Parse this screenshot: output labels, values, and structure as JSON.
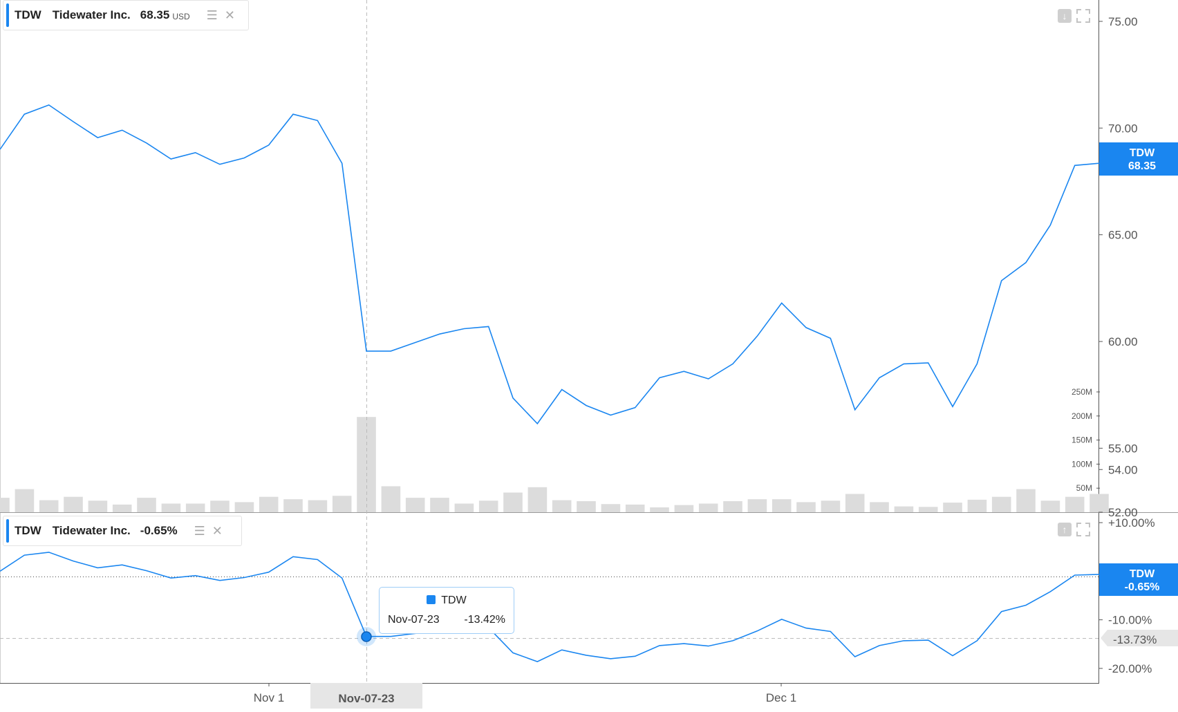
{
  "legend_top": {
    "symbol": "TDW",
    "name": "Tidewater Inc.",
    "price": "68.35",
    "currency": "USD"
  },
  "legend_bottom": {
    "symbol": "TDW",
    "name": "Tidewater Inc.",
    "change": "-0.65%"
  },
  "price_badge": {
    "symbol": "TDW",
    "value": "68.35"
  },
  "pct_badge": {
    "symbol": "TDW",
    "value": "-0.65%"
  },
  "crosshair_badge": "-13.73%",
  "tooltip": {
    "symbol": "TDW",
    "date": "Nov-07-23",
    "value": "-13.42%"
  },
  "crosshair_x_label": "Nov-07-23",
  "x_axis_labels": [
    "Nov 1",
    "Dec 1"
  ],
  "price_axis_labels": [
    "75.00",
    "70.00",
    "65.00",
    "60.00",
    "55.00",
    "54.00",
    "52.00"
  ],
  "volume_axis_labels": [
    "250M",
    "200M",
    "150M",
    "100M",
    "50M"
  ],
  "pct_axis_labels": [
    "+10.00%",
    "-10.00%",
    "-20.00%"
  ],
  "colors": {
    "line": "#1a86f0",
    "volume": "#dcdcdc",
    "badge": "#1a86f0"
  },
  "chart_data": [
    {
      "type": "line",
      "title": "",
      "series": [
        {
          "name": "TDW",
          "values": [
            69.0,
            70.65,
            71.08,
            70.3,
            69.55,
            69.9,
            69.3,
            68.55,
            68.85,
            68.3,
            68.6,
            69.2,
            70.65,
            70.35,
            68.35,
            59.55,
            59.55,
            59.95,
            60.35,
            60.6,
            60.7,
            57.35,
            56.15,
            57.75,
            57.0,
            56.55,
            56.9,
            58.3,
            58.6,
            58.25,
            58.95,
            60.25,
            61.8,
            60.65,
            60.15,
            56.8,
            58.3,
            58.95,
            59.0,
            56.95,
            58.95,
            62.85,
            63.7,
            65.45,
            68.25,
            68.35
          ]
        }
      ],
      "ylim": [
        52,
        76
      ],
      "grid": false
    },
    {
      "type": "bar",
      "title": "",
      "series": [
        {
          "name": "Volume",
          "values": [
            30,
            48,
            25,
            32,
            24,
            16,
            30,
            18,
            18,
            24,
            21,
            32,
            27,
            25,
            34,
            198,
            54,
            30,
            30,
            18,
            24,
            41,
            52,
            25,
            23,
            17,
            16,
            10,
            15,
            18,
            23,
            27,
            27,
            21,
            24,
            38,
            21,
            12,
            11,
            20,
            26,
            32,
            48,
            24,
            32,
            38
          ]
        }
      ],
      "ylim": [
        0,
        260
      ]
    },
    {
      "type": "line",
      "title": "",
      "series": [
        {
          "name": "TDW",
          "values": [
            0.0,
            3.3,
            3.9,
            2.1,
            0.7,
            1.3,
            0.1,
            -1.4,
            -0.9,
            -1.9,
            -1.3,
            -0.2,
            3.0,
            2.4,
            -1.4,
            -13.42,
            -13.42,
            -12.8,
            -12.2,
            -11.8,
            -11.6,
            -16.8,
            -18.6,
            -16.2,
            -17.3,
            -18.0,
            -17.5,
            -15.3,
            -14.9,
            -15.4,
            -14.3,
            -12.3,
            -9.9,
            -11.7,
            -12.4,
            -17.6,
            -15.3,
            -14.3,
            -14.2,
            -17.4,
            -14.3,
            -8.3,
            -7.0,
            -4.2,
            -0.8,
            -0.65
          ]
        }
      ],
      "ylim": [
        -23,
        12
      ]
    }
  ]
}
